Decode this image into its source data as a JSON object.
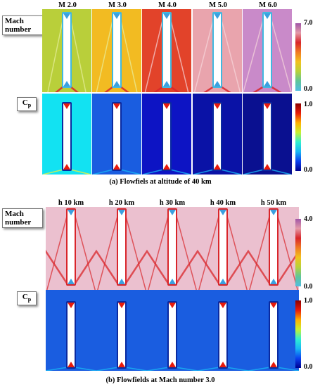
{
  "figure_a": {
    "columns": [
      "M 2.0",
      "M 3.0",
      "M 4.0",
      "M 5.0",
      "M 6.0"
    ],
    "row1_label_line1": "Mach",
    "row1_label_line2": "number",
    "row2_label_main": "C",
    "row2_label_sub": "p",
    "mach_colorbar": {
      "max": "7.0",
      "min": "0.0"
    },
    "cp_colorbar": {
      "max": "1.0",
      "min": "0.0"
    },
    "caption": "(a) Flowfiels at altitude of 40 km",
    "mach_backgrounds": [
      "#b9cf3a",
      "#f2bb22",
      "#e2432a",
      "#e9a4ad",
      "#c98ac9"
    ],
    "cp_backgrounds": [
      "#12e2f2",
      "#1a5de0",
      "#0d14c4",
      "#0a12a6",
      "#0a1090"
    ]
  },
  "figure_b": {
    "columns": [
      "h 10 km",
      "h 20 km",
      "h 30 km",
      "h 40 km",
      "h 50 km"
    ],
    "row1_label_line1": "Mach",
    "row1_label_line2": "number",
    "row2_label_main": "C",
    "row2_label_sub": "p",
    "mach_colorbar": {
      "max": "4.0",
      "min": "0.0"
    },
    "cp_colorbar": {
      "max": "1.0",
      "min": "0.0"
    },
    "caption": "(b) Flowfields at Mach number 3.0",
    "mach_background": "#ebc0cf",
    "cp_background": "#1a5de0"
  },
  "colors": {
    "mach_scale": [
      "#52bde0",
      "#5ec69b",
      "#b8d23a",
      "#f2c21e",
      "#f07a22",
      "#d9252a",
      "#e49aa8",
      "#a056a8"
    ],
    "cp_scale": [
      "#00008f",
      "#0a40f0",
      "#18b8f5",
      "#30f0d0",
      "#c8f030",
      "#ffb000",
      "#e81a0a",
      "#8a0000"
    ],
    "shock": "#d9252a",
    "body": "#ffffff"
  }
}
